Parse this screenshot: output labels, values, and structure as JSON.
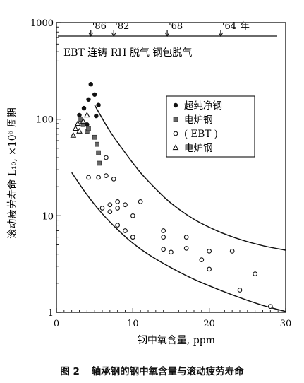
{
  "caption": {
    "label": "图 2",
    "title": "轴承钢的钢中氧含量与滚动疲劳寿命"
  },
  "chart_data": {
    "type": "scatter",
    "title": "",
    "xlabel": "钢中氧含量, ppm",
    "ylabel": "滚动疲劳寿命 L₁₀, ×10⁶ 周期",
    "xlim": [
      0,
      30
    ],
    "ylim": [
      1,
      1000
    ],
    "y_scale": "log",
    "x_ticks": [
      0,
      10,
      20,
      30
    ],
    "y_ticks": [
      1,
      10,
      100,
      1000
    ],
    "y_tick_labels": [
      "1",
      "10",
      "100",
      "1000"
    ],
    "grid": false,
    "legend_position": "upper-right",
    "timeline": {
      "years": [
        {
          "label": "'86",
          "x": 4.5
        },
        {
          "label": "'82",
          "x": 7.5
        },
        {
          "label": "'68",
          "x": 14.5
        },
        {
          "label": "'64",
          "x": 21.5
        }
      ],
      "unit": "年",
      "process_text": "EBT 连铸 RH 脱气 钢包脱气"
    },
    "series": [
      {
        "name": "超纯净钢",
        "marker": "filled-circle",
        "x": [
          3.0,
          3.6,
          4.2,
          4.5,
          5.0,
          5.5,
          4.0,
          5.2
        ],
        "y": [
          110,
          130,
          160,
          230,
          180,
          140,
          88,
          108
        ]
      },
      {
        "name": "电炉钢",
        "marker": "gray-square",
        "x": [
          3.2,
          3.5,
          4.0,
          4.2,
          5.0,
          5.3,
          5.5,
          5.6
        ],
        "y": [
          100,
          88,
          75,
          80,
          65,
          55,
          45,
          35
        ]
      },
      {
        "name": "( EBT )",
        "marker": "open-circle",
        "x": [
          4.2,
          5.5,
          6.5,
          7.5,
          6.5,
          7.0,
          8.0,
          8.0,
          9.0,
          10.0,
          11.0,
          6.0,
          7.0,
          8.0,
          9.0,
          10.0,
          14.0,
          17.0,
          14.0,
          17.0,
          20.0,
          23.0,
          10.0,
          14.0,
          15.0,
          19.0,
          20.0,
          24.0,
          26.0,
          28.0
        ],
        "y": [
          25,
          25,
          26,
          24,
          40,
          13,
          14,
          12,
          13,
          10,
          14,
          12,
          11,
          8,
          7,
          6,
          7,
          6,
          4.5,
          4.6,
          4.3,
          4.3,
          6,
          6,
          4.2,
          3.5,
          2.8,
          1.7,
          2.5,
          1.15
        ]
      },
      {
        "name": "电炉钢",
        "marker": "open-triangle",
        "x": [
          2.2,
          2.5,
          2.8,
          3.0,
          3.5,
          4.0
        ],
        "y": [
          68,
          80,
          90,
          75,
          95,
          110
        ]
      }
    ],
    "curves": [
      {
        "name": "upper-bound",
        "x": [
          5,
          7,
          9,
          11,
          13,
          15,
          18,
          21,
          24,
          27,
          30
        ],
        "y": [
          140,
          75,
          45,
          28,
          19,
          13.5,
          9.2,
          7.0,
          5.7,
          4.9,
          4.4
        ]
      },
      {
        "name": "lower-bound",
        "x": [
          2,
          4,
          6,
          8,
          10,
          12,
          15,
          18,
          21,
          24,
          27,
          30
        ],
        "y": [
          28,
          16.5,
          10.5,
          7.2,
          5.2,
          4.0,
          2.9,
          2.2,
          1.75,
          1.42,
          1.18,
          1.02
        ]
      }
    ]
  }
}
